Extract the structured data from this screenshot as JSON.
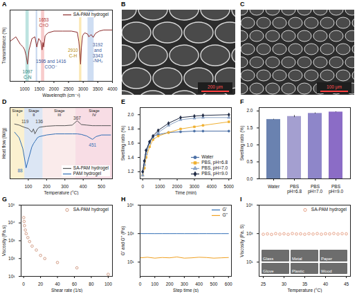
{
  "chart_data": [
    {
      "panel": "A",
      "type": "line",
      "x_label": "Wavelength (cm⁻¹)",
      "y_label": "Transmittance (%)",
      "tick_labels": "x",
      "xlim": [
        500,
        4000
      ],
      "xticks": [
        1000,
        1500,
        2000,
        2500,
        3000,
        3500,
        4000
      ],
      "ylim": [
        0,
        125
      ],
      "legend": "top-right",
      "x": [
        500,
        700,
        850,
        950,
        1000,
        1050,
        1097,
        1150,
        1250,
        1350,
        1416,
        1480,
        1550,
        1595,
        1625,
        1653,
        1700,
        1800,
        2000,
        2300,
        2600,
        2800,
        2850,
        2880,
        2910,
        2940,
        2980,
        3050,
        3150,
        3192,
        3270,
        3343,
        3420,
        3550,
        3700,
        4000
      ],
      "series": [
        {
          "name": "SA-PAM hydrogel",
          "color": "#8b2a2a",
          "values": [
            70,
            78,
            65,
            60,
            55,
            45,
            30,
            55,
            75,
            78,
            60,
            75,
            70,
            55,
            68,
            60,
            80,
            85,
            88,
            88,
            88,
            86,
            70,
            55,
            30,
            60,
            80,
            85,
            83,
            78,
            82,
            77,
            84,
            88,
            90,
            90
          ]
        }
      ],
      "bands": [
        {
          "x": [
            1040,
            1150
          ],
          "color": "#7cc7c2"
        },
        {
          "x": [
            1390,
            1440
          ],
          "color": "#8fb0de"
        },
        {
          "x": [
            1570,
            1680
          ],
          "color": "#f29a9a"
        },
        {
          "x": [
            2870,
            2950
          ],
          "color": "#f7d26a"
        },
        {
          "x": [
            3160,
            3370
          ],
          "color": "#9dbbe6"
        }
      ],
      "annotations": [
        {
          "text": [
            "1097",
            "C-N"
          ],
          "x": 1097,
          "y": 12,
          "color": "#1f7f7a"
        },
        {
          "text": [
            "1653",
            "C=O"
          ],
          "x": 1653,
          "y": 103,
          "color": "#b03030"
        },
        {
          "text": [
            "1595 and 1416",
            "COO⁻"
          ],
          "x": 1900,
          "y": 30,
          "color": "#34559c"
        },
        {
          "text": [
            "2910",
            "C-H"
          ],
          "x": 2650,
          "y": 50,
          "color": "#b58900"
        },
        {
          "text": [
            "3192",
            "and",
            "3343",
            "-NH₂"
          ],
          "x": 3500,
          "y": 50,
          "color": "#34559c"
        }
      ]
    },
    {
      "panel": "D",
      "type": "line",
      "x_label": "Temperature (°C)",
      "y_label": "Heat flow (W/g)",
      "tick_labels": "x",
      "xlim": [
        0,
        560
      ],
      "xticks": [
        100,
        200,
        300,
        400,
        500
      ],
      "ylim": [
        -10,
        3
      ],
      "legend": "bottom-right",
      "bands": [
        {
          "x": [
            0,
            80
          ],
          "color": "#f7e3a1",
          "label": "Stage I"
        },
        {
          "x": [
            80,
            180
          ],
          "color": "#b9cdea",
          "label": "Stage II"
        },
        {
          "x": [
            180,
            360
          ],
          "color": "#f6d8d8",
          "label": "Stage III"
        },
        {
          "x": [
            360,
            560
          ],
          "color": "#f2bccb",
          "label": "Stage IV"
        }
      ],
      "x": [
        25,
        50,
        70,
        88,
        100,
        119,
        128,
        136,
        150,
        160,
        200,
        250,
        300,
        340,
        367,
        390,
        420,
        451,
        470,
        500,
        550
      ],
      "series": [
        {
          "name": "SA-PAM hydrogel",
          "color": "#555555",
          "values": [
            0,
            -0.2,
            -0.5,
            -0.7,
            -0.8,
            -1.5,
            -0.9,
            -1.8,
            -0.9,
            -0.6,
            -0.4,
            -0.3,
            -0.3,
            -0.2,
            0.6,
            -0.1,
            -0.2,
            -0.3,
            -0.3,
            -0.3,
            -0.3
          ]
        },
        {
          "name": "PAM hydrogel",
          "color": "#2f6db5",
          "values": [
            -1.5,
            -2.5,
            -4.5,
            -8,
            -6.5,
            -4.2,
            -3.6,
            -3.2,
            -2.5,
            -2.3,
            -2,
            -1.8,
            -1.8,
            -1.8,
            -1.8,
            -1.9,
            -2.2,
            -2.8,
            -2.3,
            -2,
            -2
          ]
        }
      ],
      "annotations": [
        {
          "text": [
            "119"
          ],
          "x": 82,
          "y": 0.5,
          "color": "#444444"
        },
        {
          "text": [
            "136"
          ],
          "x": 160,
          "y": 0.5,
          "color": "#444444"
        },
        {
          "text": [
            "88"
          ],
          "x": 55,
          "y": -8.5,
          "color": "#2f6db5"
        },
        {
          "text": [
            "367"
          ],
          "x": 367,
          "y": 1.15,
          "color": "#444444"
        },
        {
          "text": [
            "451"
          ],
          "x": 451,
          "y": -3.8,
          "color": "#2f6db5"
        }
      ]
    },
    {
      "panel": "E",
      "type": "line",
      "x_label": "Time (min)",
      "y_label": "Swelling ratio (%)",
      "xlim": [
        -150,
        5150
      ],
      "xticks": [
        0,
        1000,
        2000,
        3000,
        4000,
        5000
      ],
      "ylim": [
        1.1,
        2.1
      ],
      "yticks": [
        1.2,
        1.4,
        1.6,
        1.8,
        {
          "value": 2,
          "label": "2.0"
        }
      ],
      "legend": "bottom-right",
      "x": [
        0,
        100,
        200,
        400,
        600,
        900,
        1500,
        2200,
        3000,
        3500,
        5000
      ],
      "series": [
        {
          "name": "Water",
          "color": "#4a6fa5",
          "marker": "circle",
          "values": [
            1.2,
            1.35,
            1.5,
            1.62,
            1.7,
            1.72,
            1.75,
            1.76,
            1.77,
            1.77,
            1.77
          ]
        },
        {
          "name": "PBS, pH=6.8",
          "color": "#f0b030",
          "marker": "square",
          "values": [
            1.15,
            1.25,
            1.4,
            1.55,
            1.65,
            1.7,
            1.75,
            1.8,
            1.83,
            1.85,
            1.9
          ]
        },
        {
          "name": "PBS, pH=7.0",
          "color": "#8aa3c6",
          "marker": "triangle",
          "values": [
            1.15,
            1.3,
            1.45,
            1.6,
            1.68,
            1.75,
            1.85,
            1.93,
            1.95,
            1.96,
            1.96
          ]
        },
        {
          "name": "PBS, pH=9.0",
          "color": "#1f2a44",
          "marker": "diamond",
          "values": [
            1.2,
            1.35,
            1.5,
            1.62,
            1.7,
            1.78,
            1.88,
            1.96,
            1.98,
            1.99,
            2
          ]
        }
      ]
    },
    {
      "panel": "F",
      "type": "bar",
      "y_label": "Swelling ratio (%)",
      "categories": [
        "Water",
        "PBS pH=6.8",
        "PBS pH=7.0",
        "PBS pH=9.0"
      ],
      "values": [
        1.75,
        1.84,
        1.93,
        1.97
      ],
      "errors": [
        0.01,
        0.03,
        0.015,
        0.01
      ],
      "colors": [
        "#6a82b0",
        "#a49fd0",
        "#8e86c9",
        "#8b6cc6"
      ],
      "ylim": [
        0,
        2.1
      ],
      "yticks": [
        {
          "value": 0,
          "label": "0.0"
        },
        0.5,
        {
          "value": 1,
          "label": "1.0"
        },
        1.5,
        {
          "value": 2,
          "label": "2.0"
        }
      ]
    },
    {
      "panel": "G",
      "type": "scatter",
      "x_label": "Shear rate (1/s)",
      "y_label": "Viscosity (Pa.s)",
      "log": "y",
      "xlim": [
        -3,
        105
      ],
      "xticks": [
        0,
        20,
        40,
        60,
        80,
        100
      ],
      "ylim": [
        10,
        100000
      ],
      "yticks": [
        {
          "value": 10,
          "label": "10¹"
        },
        {
          "value": 100,
          "label": "10²"
        },
        {
          "value": 1000,
          "label": "10³"
        },
        {
          "value": 10000,
          "label": "10⁴"
        },
        {
          "value": 100000,
          "label": "10⁵"
        }
      ],
      "legend": "top-right",
      "x": [
        0.1,
        0.5,
        1,
        2,
        3,
        5,
        7,
        10,
        15,
        20,
        25,
        40,
        63,
        100
      ],
      "series": [
        {
          "name": "SA-PAM hydrogel",
          "color": "#c8866b",
          "marker": "circle",
          "values": [
            20000,
            12000,
            7000,
            4000,
            2500,
            1500,
            900,
            500,
            300,
            150,
            100,
            60,
            30,
            13
          ]
        }
      ]
    },
    {
      "panel": "H",
      "type": "line",
      "x_label": "Step time (s)",
      "y_label": "G' and G'' (Pa)",
      "log": "y",
      "xlim": [
        0,
        620
      ],
      "xticks": [
        0,
        100,
        200,
        300,
        400,
        500,
        600
      ],
      "ylim": [
        1,
        100000
      ],
      "yticks": [
        {
          "value": 10,
          "label": "10¹"
        },
        {
          "value": 1000,
          "label": "10³"
        },
        {
          "value": 100000,
          "label": "10⁵"
        }
      ],
      "legend": "top-right",
      "x": [
        0,
        50,
        100,
        150,
        200,
        250,
        300,
        350,
        400,
        450,
        500,
        550,
        600
      ],
      "series": [
        {
          "name": "G'",
          "color": "#2f6db5",
          "values": [
            1000,
            1005,
            998,
            1002,
            1000,
            1003,
            999,
            1001,
            1000,
            1002,
            998,
            1001,
            1000
          ]
        },
        {
          "name": "G''",
          "color": "#f0a020",
          "values": [
            20,
            22,
            19,
            21,
            20,
            23,
            19,
            20,
            22,
            21,
            19,
            20,
            21
          ]
        }
      ]
    },
    {
      "panel": "I",
      "type": "scatter",
      "x_label": "Temperature (°C)",
      "y_label": "Viscosity (Pa. S)",
      "log": "y",
      "xlim": [
        24,
        46
      ],
      "xticks": [
        25,
        30,
        35,
        40,
        45
      ],
      "ylim": [
        1,
        100000
      ],
      "yticks": [
        {
          "value": 10,
          "label": "10¹"
        },
        {
          "value": 1000,
          "label": "10³"
        },
        {
          "value": 100000,
          "label": "10⁵"
        }
      ],
      "legend": "top-right",
      "x": [
        25,
        26,
        27,
        28,
        29,
        30,
        31,
        32,
        33,
        34,
        35,
        36,
        37,
        38,
        39,
        40,
        41,
        42,
        43,
        44,
        45
      ],
      "series": [
        {
          "name": "SA-PAM hydrogel",
          "color": "#e08a6a",
          "marker": "circle",
          "values": [
            900,
            950,
            880,
            1000,
            920,
            970,
            890,
            1010,
            940,
            960,
            900,
            990,
            930,
            1000,
            910,
            980,
            950,
            1020,
            930,
            990,
            960
          ]
        }
      ],
      "photos": [
        "Glass",
        "Metal",
        "Paper",
        "Glove",
        "Plastic",
        "Wood"
      ]
    }
  ],
  "images": [
    {
      "panel": "B",
      "scale_bar": "200 μm"
    },
    {
      "panel": "C",
      "scale_bar": "100 μm"
    }
  ]
}
